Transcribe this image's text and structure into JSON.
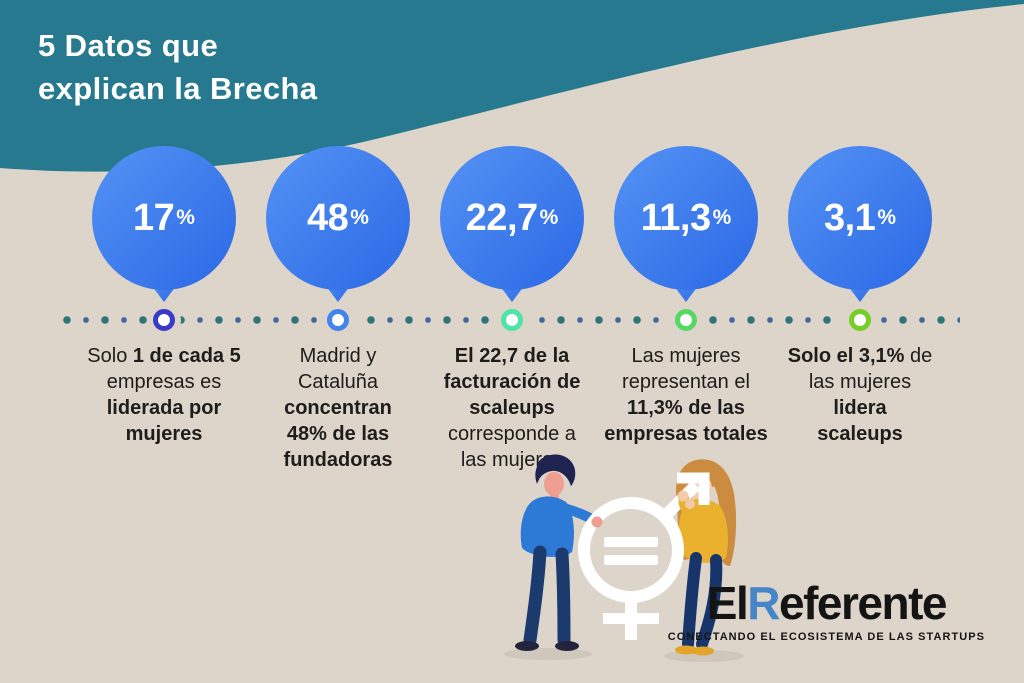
{
  "title": {
    "line1": "5 Datos que",
    "line2": "explican la Brecha"
  },
  "colors": {
    "teal": "#26798e",
    "background_beige": "#ddd4ca",
    "balloon_blue_light": "#5493f4",
    "balloon_blue_dark": "#2b68e6",
    "dot_teal": "#2f7578",
    "dot_blue": "#44699e",
    "logo_blue": "#4586c8",
    "text_dark": "#1d1d1b"
  },
  "stats": [
    {
      "value": "17",
      "unit": "%",
      "ring_color": "#3a3ac8",
      "lines": [
        [
          {
            "t": "Solo ",
            "b": false
          },
          {
            "t": "1 de cada 5",
            "b": true
          }
        ],
        [
          {
            "t": "empresas es",
            "b": false
          }
        ],
        [
          {
            "t": "liderada por",
            "b": true
          }
        ],
        [
          {
            "t": "mujeres",
            "b": true
          }
        ]
      ]
    },
    {
      "value": "48",
      "unit": "%",
      "ring_color": "#4184ee",
      "lines": [
        [
          {
            "t": "Madrid y",
            "b": false
          }
        ],
        [
          {
            "t": "Cataluña",
            "b": false
          }
        ],
        [
          {
            "t": "concentran",
            "b": true
          }
        ],
        [
          {
            "t": "48% de las",
            "b": true
          }
        ],
        [
          {
            "t": "fundadoras",
            "b": true
          }
        ]
      ]
    },
    {
      "value": "22,7",
      "unit": "%",
      "ring_color": "#4fe3a8",
      "lines": [
        [
          {
            "t": "El 22,7 de la",
            "b": true
          }
        ],
        [
          {
            "t": "facturación de",
            "b": true
          }
        ],
        [
          {
            "t": "scaleups",
            "b": true
          }
        ],
        [
          {
            "t": "corresponde a",
            "b": false
          }
        ],
        [
          {
            "t": "las mujeres",
            "b": false
          }
        ]
      ]
    },
    {
      "value": "11,3",
      "unit": "%",
      "ring_color": "#55d964",
      "lines": [
        [
          {
            "t": "Las mujeres",
            "b": false
          }
        ],
        [
          {
            "t": "representan el",
            "b": false
          }
        ],
        [
          {
            "t": "11,3% de las",
            "b": true
          }
        ],
        [
          {
            "t": "empresas totales",
            "b": true
          }
        ]
      ]
    },
    {
      "value": "3,1",
      "unit": "%",
      "ring_color": "#74ce27",
      "lines": [
        [
          {
            "t": "Solo el 3,1%",
            "b": true
          },
          {
            "t": " de",
            "b": false
          }
        ],
        [
          {
            "t": "las mujeres",
            "b": false
          }
        ],
        [
          {
            "t": "lidera",
            "b": true
          }
        ],
        [
          {
            "t": "scaleups",
            "b": true
          }
        ]
      ]
    }
  ],
  "logo": {
    "el": "El",
    "r": "R",
    "rest": "eferente",
    "tagline": "CONECTANDO EL ECOSISTEMA DE LAS STARTUPS"
  },
  "chart_data": {
    "type": "infographic",
    "title": "5 Datos que explican la Brecha",
    "categories": [
      "Solo 1 de cada 5 empresas es liderada por mujeres",
      "Madrid y Cataluña concentran 48% de las fundadoras",
      "El 22,7 de la facturación de scaleups corresponde a las mujeres",
      "Las mujeres representan el 11,3% de las empresas totales",
      "Solo el 3,1% de las mujeres lidera scaleups"
    ],
    "values": [
      17,
      48,
      22.7,
      11.3,
      3.1
    ],
    "value_labels": [
      "17%",
      "48%",
      "22,7%",
      "11,3%",
      "3,1%"
    ],
    "unit": "%",
    "layout": "horizontal dotted timeline with balloon markers"
  }
}
